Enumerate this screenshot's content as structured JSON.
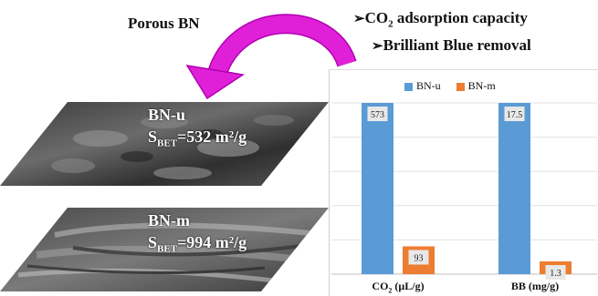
{
  "header": {
    "porous_label": "Porous BN",
    "bullets": [
      {
        "pre": "CO",
        "sub": "2",
        "post": " adsorption capacity"
      },
      {
        "pre": "Brilliant Blue removal",
        "sub": "",
        "post": ""
      }
    ]
  },
  "samples": [
    {
      "name": "BN-u",
      "bet_prefix": "S",
      "bet_sub": "BET",
      "bet_value": "=532 m²/g"
    },
    {
      "name": "BN-m",
      "bet_prefix": "S",
      "bet_sub": "BET",
      "bet_value": "=994 m²/g"
    }
  ],
  "colors": {
    "bn_u": "#5b9bd5",
    "bn_m": "#ed7d31",
    "arrow": "#e020d8"
  },
  "chart_data": {
    "type": "bar",
    "categories": [
      "CO2 (μL/g)",
      "BB (mg/g)"
    ],
    "category_display": [
      {
        "pre": "CO",
        "sub": "2",
        "post": " (μL/g)"
      },
      {
        "pre": "BB (mg/g)",
        "sub": "",
        "post": ""
      }
    ],
    "series": [
      {
        "name": "BN-u",
        "values": [
          573,
          17.5
        ],
        "labels": [
          "573",
          "17.5"
        ]
      },
      {
        "name": "BN-m",
        "values": [
          93,
          1.3
        ],
        "labels": [
          "93",
          "1.3"
        ]
      }
    ],
    "legend_position": "top",
    "grid": true
  }
}
